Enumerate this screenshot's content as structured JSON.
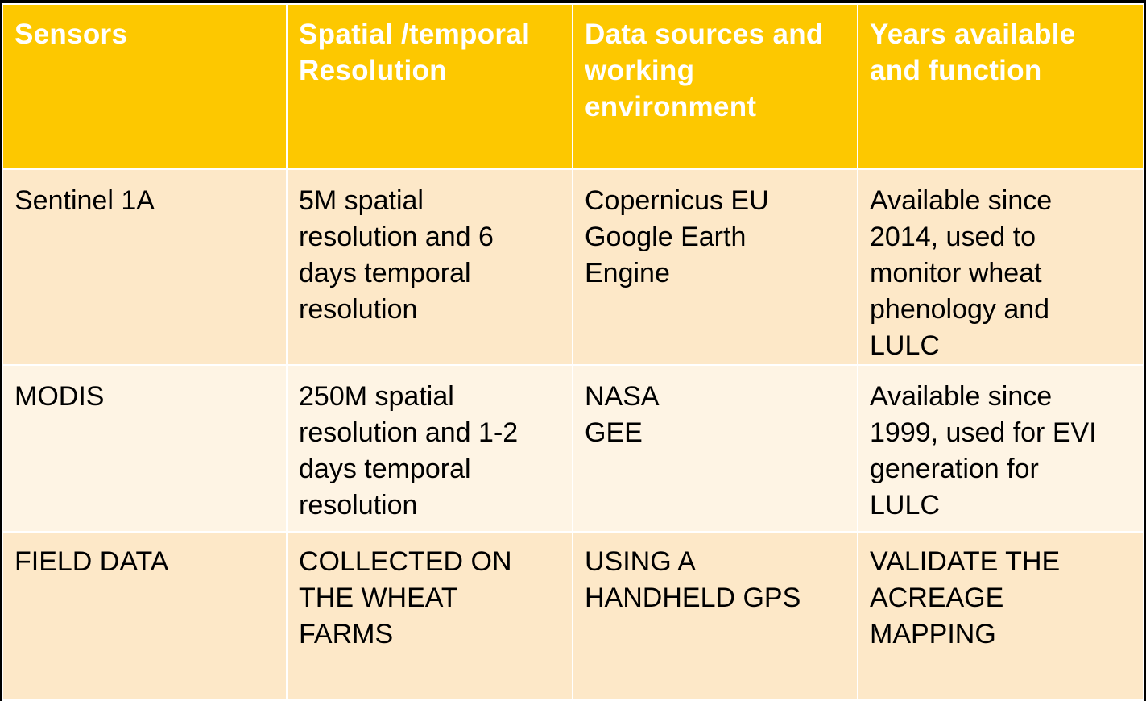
{
  "table": {
    "headers": [
      {
        "lines": [
          "Sensors"
        ]
      },
      {
        "lines": [
          "Spatial /temporal",
          "Resolution"
        ]
      },
      {
        "lines": [
          "Data sources and",
          "working",
          "environment"
        ]
      },
      {
        "lines": [
          "Years available",
          "and function"
        ]
      }
    ],
    "rows": [
      {
        "cells": [
          {
            "lines": [
              "Sentinel 1A"
            ]
          },
          {
            "lines": [
              "5M spatial",
              "resolution and 6",
              "days temporal",
              "resolution"
            ]
          },
          {
            "lines": [
              "Copernicus EU",
              "Google Earth",
              "Engine"
            ]
          },
          {
            "lines": [
              "Available since",
              "2014, used to",
              "monitor wheat",
              "phenology and",
              "LULC"
            ]
          }
        ]
      },
      {
        "cells": [
          {
            "lines": [
              "MODIS"
            ]
          },
          {
            "lines": [
              "250M spatial",
              "resolution and 1-2",
              "days temporal",
              "resolution"
            ]
          },
          {
            "lines": [
              "NASA",
              "GEE"
            ]
          },
          {
            "lines": [
              "Available since",
              "1999, used for EVI",
              "generation for",
              "LULC"
            ]
          }
        ]
      },
      {
        "cells": [
          {
            "lines": [
              "FIELD DATA"
            ]
          },
          {
            "lines": [
              "COLLECTED ON",
              "THE WHEAT",
              "FARMS"
            ]
          },
          {
            "lines": [
              "USING A",
              "HANDHELD GPS"
            ]
          },
          {
            "lines": [
              "VALIDATE THE",
              "ACREAGE",
              "MAPPING"
            ]
          }
        ]
      }
    ]
  },
  "colors": {
    "header_bg": "#fdc800",
    "header_text": "#ffffff",
    "row_bg_a": "#fde8c8",
    "row_bg_b": "#fef4e4",
    "page_bg": "#000000"
  }
}
